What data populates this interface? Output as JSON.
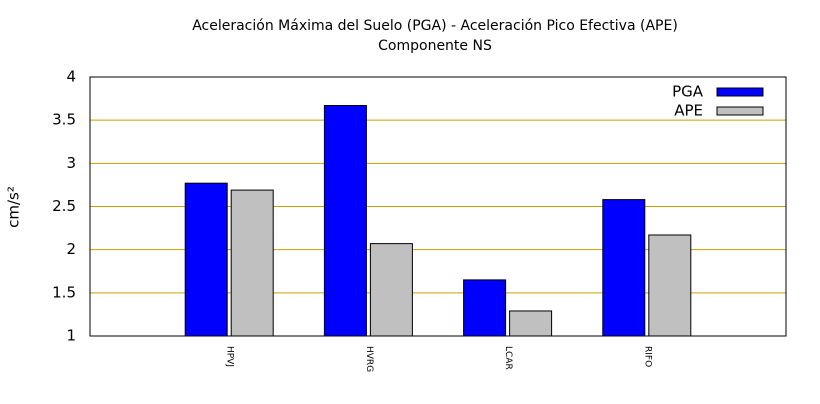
{
  "chart_data": {
    "type": "bar",
    "title": "Aceleración Máxima del Suelo (PGA) -  Aceleración Pico Efectiva (APE)",
    "subtitle": "Componente NS",
    "ylabel": "cm/s²",
    "categories": [
      "HPVJ",
      "HVRG",
      "LCAR",
      "RIFO"
    ],
    "series": [
      {
        "name": "PGA",
        "color": "#0000ff",
        "values": [
          2.77,
          3.67,
          1.65,
          2.58
        ]
      },
      {
        "name": "APE",
        "color": "#c0c0c0",
        "values": [
          2.69,
          2.07,
          1.29,
          2.17
        ]
      }
    ],
    "ylim": [
      1,
      4
    ],
    "yticks": [
      1,
      1.5,
      2,
      2.5,
      3,
      3.5,
      4
    ],
    "grid": true,
    "grid_color": "#c8a000",
    "legend": "top-right"
  }
}
